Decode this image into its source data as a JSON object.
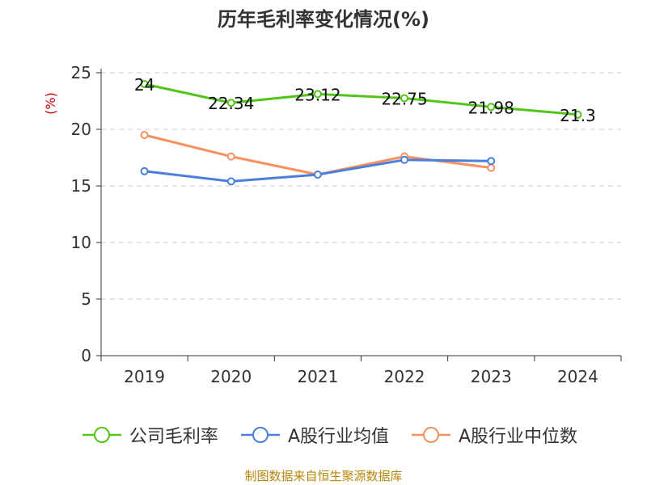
{
  "chart_data": {
    "type": "line",
    "title": "历年毛利率变化情况(%)",
    "ylabel": "(%)",
    "categories": [
      "2019",
      "2020",
      "2021",
      "2022",
      "2023",
      "2024"
    ],
    "ylim": [
      0,
      25
    ],
    "yticks": [
      0,
      5,
      10,
      15,
      20,
      25
    ],
    "grid": true,
    "legend_position": "bottom",
    "series": [
      {
        "name": "公司毛利率",
        "color": "#52c41a",
        "values": [
          24,
          22.34,
          23.12,
          22.75,
          21.98,
          21.3
        ],
        "show_labels": true
      },
      {
        "name": "A股行业均值",
        "color": "#4a7fdc",
        "values": [
          16.3,
          15.4,
          16.0,
          17.3,
          17.2,
          null
        ],
        "show_labels": false
      },
      {
        "name": "A股行业中位数",
        "color": "#f5915c",
        "values": [
          19.5,
          17.6,
          16.0,
          17.6,
          16.6,
          null
        ],
        "show_labels": false
      }
    ]
  },
  "footer": {
    "source": "制图数据来自恒生聚源数据库"
  }
}
